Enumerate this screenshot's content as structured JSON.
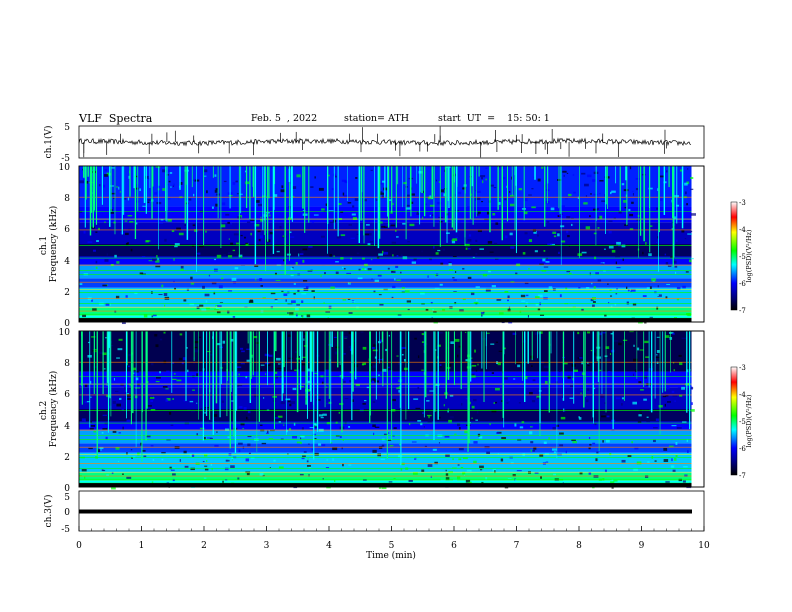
{
  "header": {
    "title": "VLF  Spectra",
    "date": "Feb. 5  , 2022",
    "station": "station= ATH",
    "start": "start  UT  =    15: 50: 1"
  },
  "chart_data": [
    {
      "type": "line",
      "id": "ch1-waveform",
      "ylabel": "ch.1(V)",
      "ylim": [
        -5,
        5
      ],
      "y_ticks": [
        "5",
        "-5"
      ],
      "xlim": [
        0,
        10
      ]
    },
    {
      "type": "heatmap",
      "id": "ch1-spectrogram",
      "ylabel": "ch.1\nFrequency  (kHz)",
      "ylabel_lines": [
        "ch.1",
        "Frequency  (kHz)"
      ],
      "ylim": [
        0,
        10
      ],
      "y_ticks": [
        "0",
        "2",
        "4",
        "6",
        "8",
        "10"
      ],
      "xlim": [
        0,
        10
      ],
      "data_end_min": 9.8,
      "colorbar": {
        "label": "log(PSD)(V²/Hz)",
        "range": [
          -7,
          -3
        ],
        "ticks": [
          "-3",
          "-4",
          "-5",
          "-6",
          "-7"
        ]
      }
    },
    {
      "type": "heatmap",
      "id": "ch2-spectrogram",
      "ylabel_lines": [
        "ch.2",
        "Frequency  (kHz)"
      ],
      "ylim": [
        0,
        10
      ],
      "y_ticks": [
        "0",
        "2",
        "4",
        "6",
        "8",
        "10"
      ],
      "xlim": [
        0,
        10
      ],
      "data_end_min": 9.8,
      "colorbar": {
        "label": "log(PSD)(V²/Hz)",
        "range": [
          -7,
          -3
        ],
        "ticks": [
          "-3",
          "-4",
          "-5",
          "-6",
          "-7"
        ]
      }
    },
    {
      "type": "line",
      "id": "ch3-waveform",
      "ylabel": "ch.3(V)",
      "ylim": [
        -5,
        5
      ],
      "y_ticks": [
        "5",
        "0",
        "-5"
      ],
      "constant_value": -0.5,
      "xlim": [
        0,
        10
      ]
    }
  ],
  "x_axis": {
    "label": "Time  (min)",
    "ticks": [
      "0",
      "1",
      "2",
      "3",
      "4",
      "5",
      "6",
      "7",
      "8",
      "9",
      "10"
    ]
  },
  "colors": {
    "colormap": [
      "#000000",
      "#000080",
      "#0000ff",
      "#00ffff",
      "#00ff00",
      "#ffff00",
      "#ff0000",
      "#ffffff"
    ]
  }
}
